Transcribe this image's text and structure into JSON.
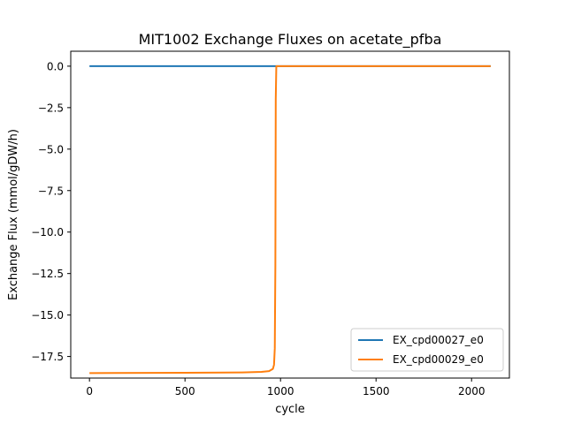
{
  "chart_data": {
    "type": "line",
    "title": "MIT1002 Exchange Fluxes on acetate_pfba",
    "xlabel": "cycle",
    "ylabel": "Exchange Flux (mmol/gDW/h)",
    "xlim": [
      -98,
      2198
    ],
    "ylim": [
      -18.8,
      0.9
    ],
    "xticks": [
      0,
      500,
      1000,
      1500,
      2000
    ],
    "yticks": [
      0.0,
      -2.5,
      -5.0,
      -7.5,
      -10.0,
      -12.5,
      -15.0,
      -17.5
    ],
    "xtick_labels": [
      "0",
      "500",
      "1000",
      "1500",
      "2000"
    ],
    "ytick_labels": [
      "0.0",
      "−2.5",
      "−5.0",
      "−7.5",
      "−10.0",
      "−12.5",
      "−15.0",
      "−17.5"
    ],
    "legend_position": "lower-right",
    "series": [
      {
        "name": "EX_cpd00027_e0",
        "color": "#1f77b4",
        "x": [
          0,
          500,
          1000,
          1500,
          2100
        ],
        "y": [
          0,
          0,
          0,
          0,
          0
        ]
      },
      {
        "name": "EX_cpd00029_e0",
        "color": "#ff7f0e",
        "x": [
          0,
          500,
          800,
          900,
          940,
          960,
          966,
          970,
          973,
          975,
          978,
          985,
          1000,
          1500,
          2100
        ],
        "y": [
          -18.5,
          -18.48,
          -18.46,
          -18.43,
          -18.38,
          -18.25,
          -18.0,
          -17.0,
          -12.0,
          -2.0,
          0,
          0,
          0,
          0,
          0
        ]
      }
    ]
  }
}
